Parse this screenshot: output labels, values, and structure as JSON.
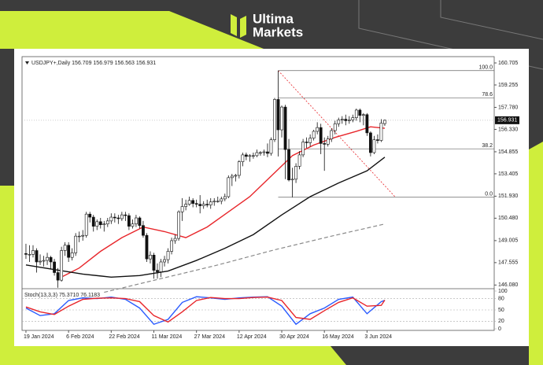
{
  "brand": {
    "line1": "Ultima",
    "line2": "Markets"
  },
  "chart_data": {
    "type": "candlestick",
    "title": "USDJPY+,Daily 156.709 156.979 156.563 156.931",
    "xlim": [
      -1.1,
      131.8
    ],
    "xticks": [
      {
        "value": 0,
        "label": "19 Jan 2024"
      },
      {
        "value": 12,
        "label": "6 Feb 2024"
      },
      {
        "value": 24,
        "label": "22 Feb 2024"
      },
      {
        "value": 36,
        "label": "11 Mar 2024"
      },
      {
        "value": 48,
        "label": "27 Mar 2024"
      },
      {
        "value": 60,
        "label": "12 Apr 2024"
      },
      {
        "value": 72,
        "label": "30 Apr 2024"
      },
      {
        "value": 84,
        "label": "16 May 2024"
      },
      {
        "value": 96,
        "label": "3 Jun 2024"
      }
    ],
    "ylim": [
      145.89,
      161.12
    ],
    "yticks": [
      160.705,
      159.255,
      {
        "value": 157.78,
        "label": "157.780"
      },
      {
        "value": 156.33,
        "label": "156.330"
      },
      154.855,
      153.405,
      {
        "value": 151.93,
        "label": "151.930"
      },
      {
        "value": 150.48,
        "label": "150.480"
      },
      149.005,
      147.555,
      {
        "value": 146.08,
        "label": "146.080"
      }
    ],
    "candles": [
      [
        148.15,
        148.8,
        147.8,
        148.1
      ],
      [
        148.1,
        148.7,
        147.6,
        148.1
      ],
      [
        148.1,
        148.7,
        147.9,
        148.35
      ],
      [
        148.35,
        148.5,
        146.9,
        147.6
      ],
      [
        147.6,
        148.1,
        147.4,
        147.65
      ],
      [
        147.65,
        148.0,
        147.3,
        147.7
      ],
      [
        147.7,
        148.2,
        147.4,
        147.9
      ],
      [
        147.9,
        148.0,
        147.1,
        147.6
      ],
      [
        147.6,
        147.8,
        146.7,
        146.9
      ],
      [
        146.9,
        147.2,
        145.9,
        146.4
      ],
      [
        146.4,
        148.6,
        146.3,
        148.35
      ],
      [
        148.35,
        148.9,
        148.0,
        148.7
      ],
      [
        148.7,
        148.9,
        147.6,
        147.9
      ],
      [
        147.9,
        148.5,
        147.7,
        148.2
      ],
      [
        148.2,
        149.5,
        148.0,
        149.3
      ],
      [
        149.3,
        149.6,
        148.9,
        149.3
      ],
      [
        149.3,
        149.7,
        149.0,
        149.35
      ],
      [
        149.35,
        150.9,
        149.2,
        150.75
      ],
      [
        150.75,
        150.9,
        150.2,
        150.55
      ],
      [
        150.55,
        150.7,
        149.6,
        149.95
      ],
      [
        149.95,
        150.4,
        149.7,
        150.25
      ],
      [
        150.25,
        150.5,
        149.8,
        150.05
      ],
      [
        150.05,
        150.3,
        149.6,
        150.1
      ],
      [
        150.1,
        150.5,
        149.9,
        150.3
      ],
      [
        150.3,
        150.8,
        150.1,
        150.55
      ],
      [
        150.55,
        150.8,
        150.2,
        150.5
      ],
      [
        150.5,
        150.7,
        150.1,
        150.45
      ],
      [
        150.45,
        150.9,
        150.3,
        150.7
      ],
      [
        150.7,
        150.9,
        150.3,
        150.65
      ],
      [
        150.65,
        150.8,
        149.7,
        149.95
      ],
      [
        149.95,
        150.4,
        149.8,
        150.1
      ],
      [
        150.1,
        150.7,
        149.9,
        150.5
      ],
      [
        150.5,
        150.6,
        149.8,
        150.0
      ],
      [
        150.0,
        150.3,
        149.2,
        149.35
      ],
      [
        149.35,
        149.5,
        147.6,
        147.8
      ],
      [
        147.8,
        148.3,
        147.5,
        148.05
      ],
      [
        148.05,
        148.2,
        146.5,
        147.05
      ],
      [
        147.05,
        147.5,
        146.5,
        146.95
      ],
      [
        146.95,
        147.8,
        146.6,
        147.6
      ],
      [
        147.6,
        148.0,
        147.3,
        147.75
      ],
      [
        147.75,
        148.5,
        147.5,
        148.3
      ],
      [
        148.3,
        149.2,
        148.1,
        149.0
      ],
      [
        149.0,
        149.4,
        148.8,
        149.15
      ],
      [
        149.15,
        151.0,
        149.0,
        150.9
      ],
      [
        150.9,
        151.8,
        150.3,
        151.25
      ],
      [
        151.25,
        151.7,
        151.0,
        151.4
      ],
      [
        151.4,
        151.9,
        151.3,
        151.65
      ],
      [
        151.65,
        151.8,
        151.2,
        151.45
      ],
      [
        151.45,
        151.7,
        151.2,
        151.4
      ],
      [
        151.4,
        152.0,
        150.8,
        151.3
      ],
      [
        151.3,
        151.6,
        151.1,
        151.4
      ],
      [
        151.4,
        151.7,
        151.2,
        151.35
      ],
      [
        151.35,
        151.8,
        151.1,
        151.55
      ],
      [
        151.55,
        151.8,
        151.3,
        151.6
      ],
      [
        151.6,
        151.9,
        151.5,
        151.6
      ],
      [
        151.6,
        151.9,
        151.4,
        151.75
      ],
      [
        151.75,
        152.1,
        151.6,
        151.9
      ],
      [
        151.9,
        153.3,
        151.8,
        153.15
      ],
      [
        153.15,
        153.4,
        152.6,
        153.25
      ],
      [
        153.25,
        153.4,
        152.9,
        153.3
      ],
      [
        153.3,
        154.3,
        153.1,
        154.2
      ],
      [
        154.2,
        154.8,
        153.9,
        154.65
      ],
      [
        154.65,
        154.8,
        154.3,
        154.55
      ],
      [
        154.55,
        154.7,
        154.2,
        154.6
      ],
      [
        154.6,
        154.8,
        154.4,
        154.6
      ],
      [
        154.6,
        155.0,
        154.5,
        154.8
      ],
      [
        154.8,
        154.9,
        154.6,
        154.8
      ],
      [
        154.8,
        155.0,
        154.6,
        154.85
      ],
      [
        154.85,
        155.4,
        154.5,
        154.75
      ],
      [
        154.75,
        155.8,
        154.6,
        155.65
      ],
      [
        155.65,
        158.4,
        155.5,
        158.3
      ],
      [
        158.3,
        160.2,
        154.55,
        156.3
      ],
      [
        156.3,
        157.9,
        155.8,
        157.8
      ],
      [
        157.8,
        157.95,
        153.05,
        155.0
      ],
      [
        155.0,
        155.7,
        152.9,
        153.0
      ],
      [
        153.0,
        153.8,
        151.86,
        153.05
      ],
      [
        153.05,
        154.1,
        152.8,
        153.9
      ],
      [
        153.9,
        154.9,
        153.7,
        154.65
      ],
      [
        154.65,
        155.7,
        154.5,
        155.5
      ],
      [
        155.5,
        155.8,
        155.1,
        155.45
      ],
      [
        155.45,
        156.0,
        155.2,
        155.75
      ],
      [
        155.75,
        156.3,
        155.6,
        156.2
      ],
      [
        156.2,
        156.8,
        156.0,
        156.45
      ],
      [
        156.45,
        156.7,
        154.7,
        155.4
      ],
      [
        155.4,
        155.8,
        153.6,
        155.35
      ],
      [
        155.35,
        155.9,
        155.2,
        155.7
      ],
      [
        155.7,
        156.4,
        155.5,
        156.25
      ],
      [
        156.25,
        156.9,
        156.0,
        156.7
      ],
      [
        156.7,
        157.1,
        156.5,
        156.95
      ],
      [
        156.95,
        157.2,
        156.7,
        157.0
      ],
      [
        157.0,
        157.3,
        156.6,
        156.9
      ],
      [
        156.9,
        157.2,
        156.7,
        156.95
      ],
      [
        156.95,
        157.3,
        156.8,
        157.1
      ],
      [
        157.1,
        157.7,
        156.9,
        157.6
      ],
      [
        157.6,
        157.7,
        156.8,
        157.25
      ],
      [
        157.25,
        157.4,
        156.6,
        157.3
      ],
      [
        157.3,
        157.4,
        155.9,
        156.1
      ],
      [
        156.1,
        156.2,
        154.55,
        154.8
      ],
      [
        154.8,
        155.9,
        154.7,
        155.65
      ],
      [
        155.65,
        156.0,
        155.4,
        155.6
      ],
      [
        155.6,
        157.0,
        155.5,
        156.75
      ],
      [
        156.709,
        156.979,
        156.563,
        156.931
      ]
    ],
    "series": [
      {
        "color": "#e8262b",
        "x": [
          10,
          15,
          21,
          27,
          33,
          39,
          45,
          51,
          57,
          63,
          67,
          71,
          75,
          81,
          87,
          93,
          97,
          101
        ],
        "values": [
          146.6,
          147.2,
          148.3,
          149.2,
          149.9,
          149.6,
          149.2,
          149.9,
          150.9,
          151.9,
          152.8,
          153.7,
          154.6,
          155.3,
          155.8,
          156.2,
          156.5,
          156.4
        ]
      },
      {
        "color": "#111111",
        "x": [
          0,
          8,
          16,
          24,
          32,
          40,
          48,
          56,
          64,
          72,
          80,
          88,
          96,
          101
        ],
        "values": [
          147.4,
          147.1,
          146.8,
          146.6,
          146.7,
          147.0,
          147.7,
          148.5,
          149.4,
          150.7,
          151.9,
          152.8,
          153.6,
          154.5
        ]
      },
      {
        "color": "#8a8a8a",
        "dashed": true,
        "x": [
          22,
          38,
          54,
          70,
          86,
          101
        ],
        "values": [
          145.6,
          146.5,
          147.4,
          148.4,
          149.3,
          150.1
        ]
      }
    ],
    "fib": {
      "anchors": [
        {
          "x": 71,
          "y": 160.2
        },
        {
          "x": 104,
          "y": 151.86
        }
      ],
      "levels": [
        {
          "label": "100.0",
          "value": 160.2
        },
        {
          "label": "78.6",
          "value": 158.41
        },
        {
          "label": "38.2",
          "value": 155.05
        },
        {
          "label": "0.0",
          "value": 151.86
        }
      ]
    },
    "indicator": {
      "title": "Stoch(13,3,3) 75.3710 76.1183",
      "ylim": [
        0,
        100
      ],
      "yticks": [
        0,
        20,
        50,
        80,
        100
      ],
      "x": [
        0,
        4,
        8,
        12,
        16,
        20,
        24,
        28,
        32,
        36,
        40,
        44,
        48,
        52,
        56,
        60,
        64,
        68,
        72,
        76,
        80,
        84,
        88,
        92,
        96,
        100,
        101
      ],
      "series": [
        {
          "color": "#2a5bff",
          "values": [
            55,
            35,
            40,
            75,
            82,
            80,
            84,
            78,
            55,
            12,
            25,
            70,
            85,
            82,
            78,
            82,
            84,
            85,
            60,
            12,
            40,
            55,
            78,
            84,
            40,
            72,
            75.371
          ]
        },
        {
          "color": "#e8262b",
          "values": [
            58,
            45,
            38,
            60,
            78,
            81,
            82,
            80,
            72,
            35,
            18,
            45,
            75,
            83,
            80,
            80,
            83,
            84,
            75,
            30,
            25,
            48,
            70,
            82,
            60,
            62,
            76.1183
          ]
        }
      ]
    }
  }
}
